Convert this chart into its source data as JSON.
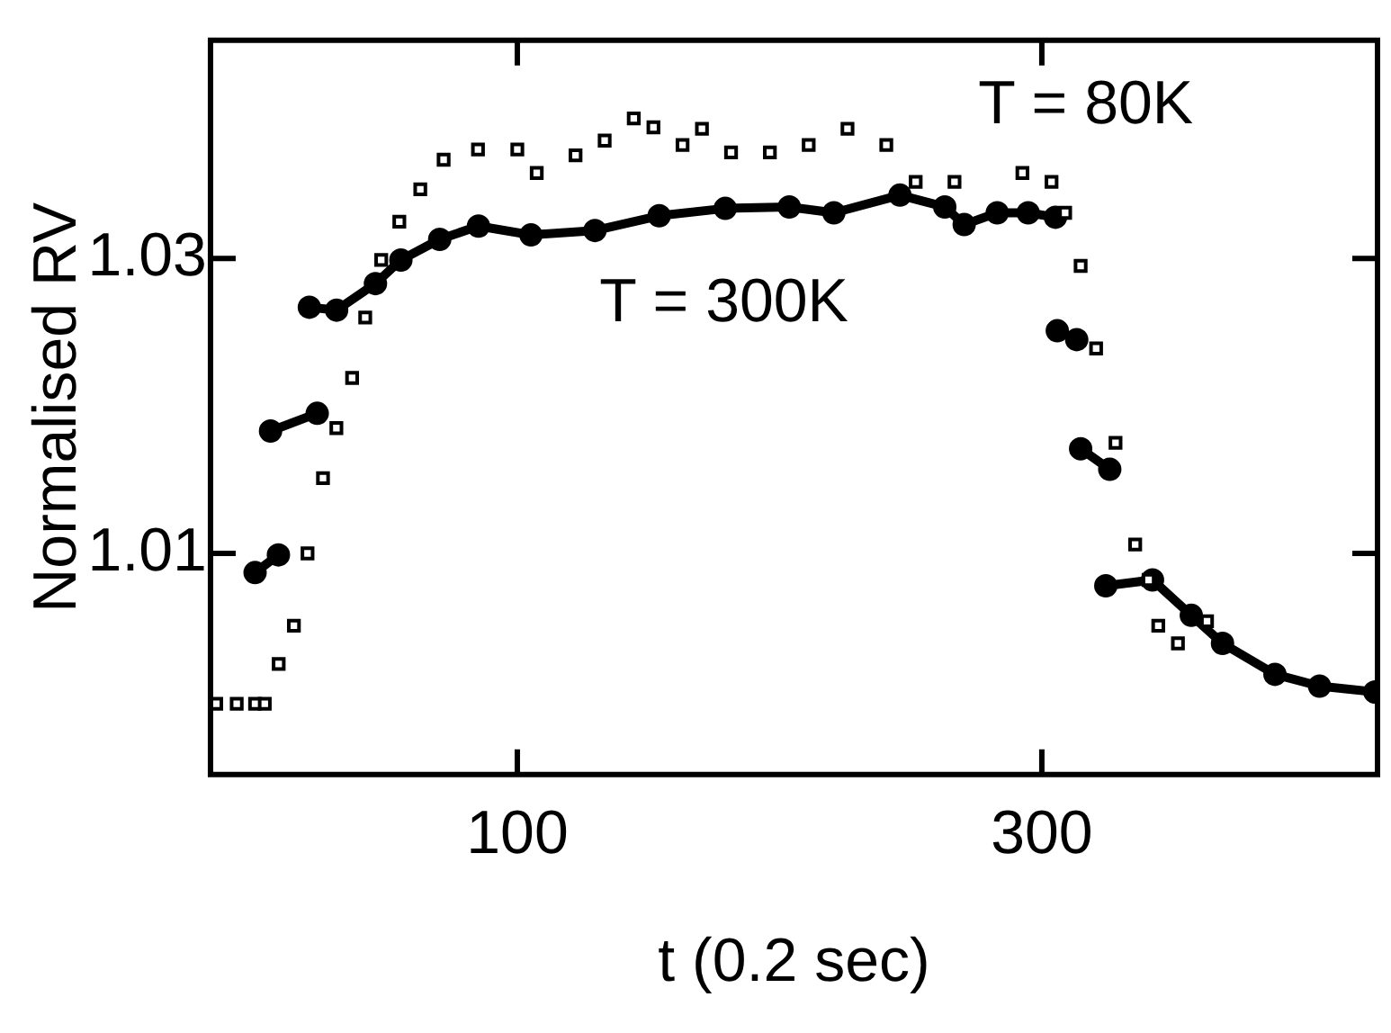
{
  "chart_data": {
    "type": "scatter",
    "xlabel": "t (0.2 sec)",
    "ylabel": "Normalised RV",
    "xlim": [
      -17,
      428
    ],
    "xticks": [
      100,
      300
    ],
    "ylim": [
      0.995,
      1.0448
    ],
    "yticks": [
      1.01,
      1.03
    ],
    "grid": false,
    "legend": false,
    "series": [
      {
        "marker": "square",
        "color": "#000000",
        "x": [
          -14.8,
          -7,
          0,
          3.7,
          9,
          14.8,
          20,
          25.9,
          31,
          37.0,
          42,
          48.1,
          55,
          63.0,
          71.9,
          85,
          100,
          107.4,
          122.2,
          133.3,
          144.4,
          151.9,
          163.0,
          170.4,
          181.5,
          196.3,
          211.1,
          225.9,
          240.7,
          251.9,
          266.7,
          292.6,
          303.7,
          308.9,
          314.8,
          320.7,
          328.1,
          335.6,
          340.7,
          344.4,
          351.9,
          363.0
        ],
        "values": [
          0.9998,
          0.9998,
          0.9998,
          0.9998,
          1.0025,
          1.0051,
          1.01,
          1.0151,
          1.0185,
          1.0219,
          1.026,
          1.0299,
          1.0325,
          1.0347,
          1.0367,
          1.0374,
          1.0374,
          1.0358,
          1.037,
          1.038,
          1.0395,
          1.0389,
          1.0377,
          1.0388,
          1.0372,
          1.0372,
          1.0377,
          1.0388,
          1.0377,
          1.0352,
          1.0352,
          1.0358,
          1.0352,
          1.0331,
          1.0295,
          1.0239,
          1.0175,
          1.0106,
          1.0082,
          1.0051,
          1.0039,
          1.0054
        ]
      },
      {
        "type": "line",
        "marker": "circle",
        "color": "#000000",
        "x": [
          0.0,
          8.9,
          7.4,
          5.9,
          23.7,
          22.2,
          20.7,
          31.1,
          45.9,
          55.6,
          70.4,
          85.2,
          105.2,
          129.6,
          154.1,
          179.3,
          203.7,
          220.7,
          245.9,
          263.0,
          270.4,
          283.0,
          294.8,
          305.2,
          305.5,
          305.9,
          313.3,
          314.0,
          314.8,
          325.9,
          325.0,
          324.4,
          342.2,
          357.0,
          368.9,
          388.9,
          405.9,
          427.0
        ],
        "values": [
          1.0087,
          1.0099,
          null,
          1.0183,
          1.0195,
          null,
          1.0267,
          1.0265,
          1.0283,
          1.0299,
          1.0313,
          1.0322,
          1.0316,
          1.0319,
          1.0329,
          1.0334,
          1.0335,
          1.0331,
          1.0343,
          1.0335,
          1.0323,
          1.0331,
          1.0331,
          1.0328,
          null,
          1.0251,
          1.0245,
          null,
          1.0171,
          1.0157,
          null,
          1.0078,
          1.0082,
          1.0058,
          1.0039,
          1.0018,
          1.001,
          1.0006
        ]
      }
    ],
    "annotations": [
      "T = 80K",
      "T = 300K"
    ]
  }
}
